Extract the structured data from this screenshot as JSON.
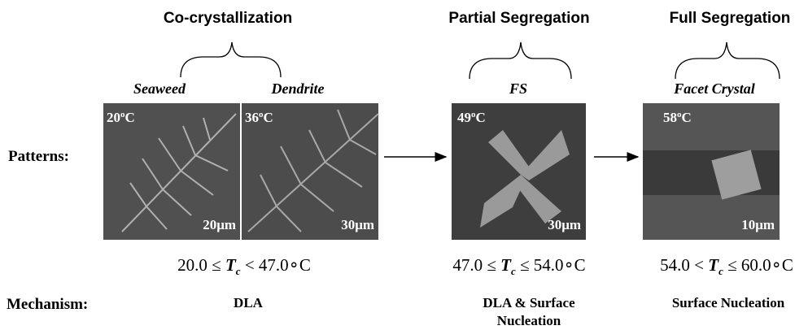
{
  "row_labels": {
    "patterns": "Patterns:",
    "mechanism": "Mechanism:"
  },
  "groups": [
    {
      "title": "Co-crystallization",
      "range": {
        "left": "20.0 ≤ ",
        "var": "T",
        "sub": "c",
        "right": " < 47.0",
        "deg": "∘",
        "unit": "C"
      },
      "mechanism": [
        "DLA"
      ]
    },
    {
      "title": "Partial Segregation",
      "range": {
        "left": "47.0 ≤ ",
        "var": "T",
        "sub": "c",
        "right": " ≤ 54.0",
        "deg": "∘",
        "unit": "C"
      },
      "mechanism": [
        "DLA & Surface",
        "Nucleation"
      ]
    },
    {
      "title": "Full Segregation",
      "range": {
        "left": "54.0 < ",
        "var": "T",
        "sub": "c",
        "right": " ≤ 60.0",
        "deg": "∘",
        "unit": "C"
      },
      "mechanism": [
        "Surface Nucleation"
      ]
    }
  ],
  "panels": [
    {
      "label": "Seaweed",
      "temp": {
        "number": "20",
        "sup": "o",
        "unit": "C"
      },
      "scale": "20μm"
    },
    {
      "label": "Dendrite",
      "temp": {
        "number": "36",
        "sup": "o",
        "unit": "C"
      },
      "scale": "30μm"
    },
    {
      "label": "FS",
      "temp": {
        "number": "49",
        "sup": "o",
        "unit": "C"
      },
      "scale": "30μm"
    },
    {
      "label": "Facet Crystal",
      "temp": {
        "number": "58",
        "sup": "o",
        "unit": "C"
      },
      "scale": "10μm"
    }
  ]
}
